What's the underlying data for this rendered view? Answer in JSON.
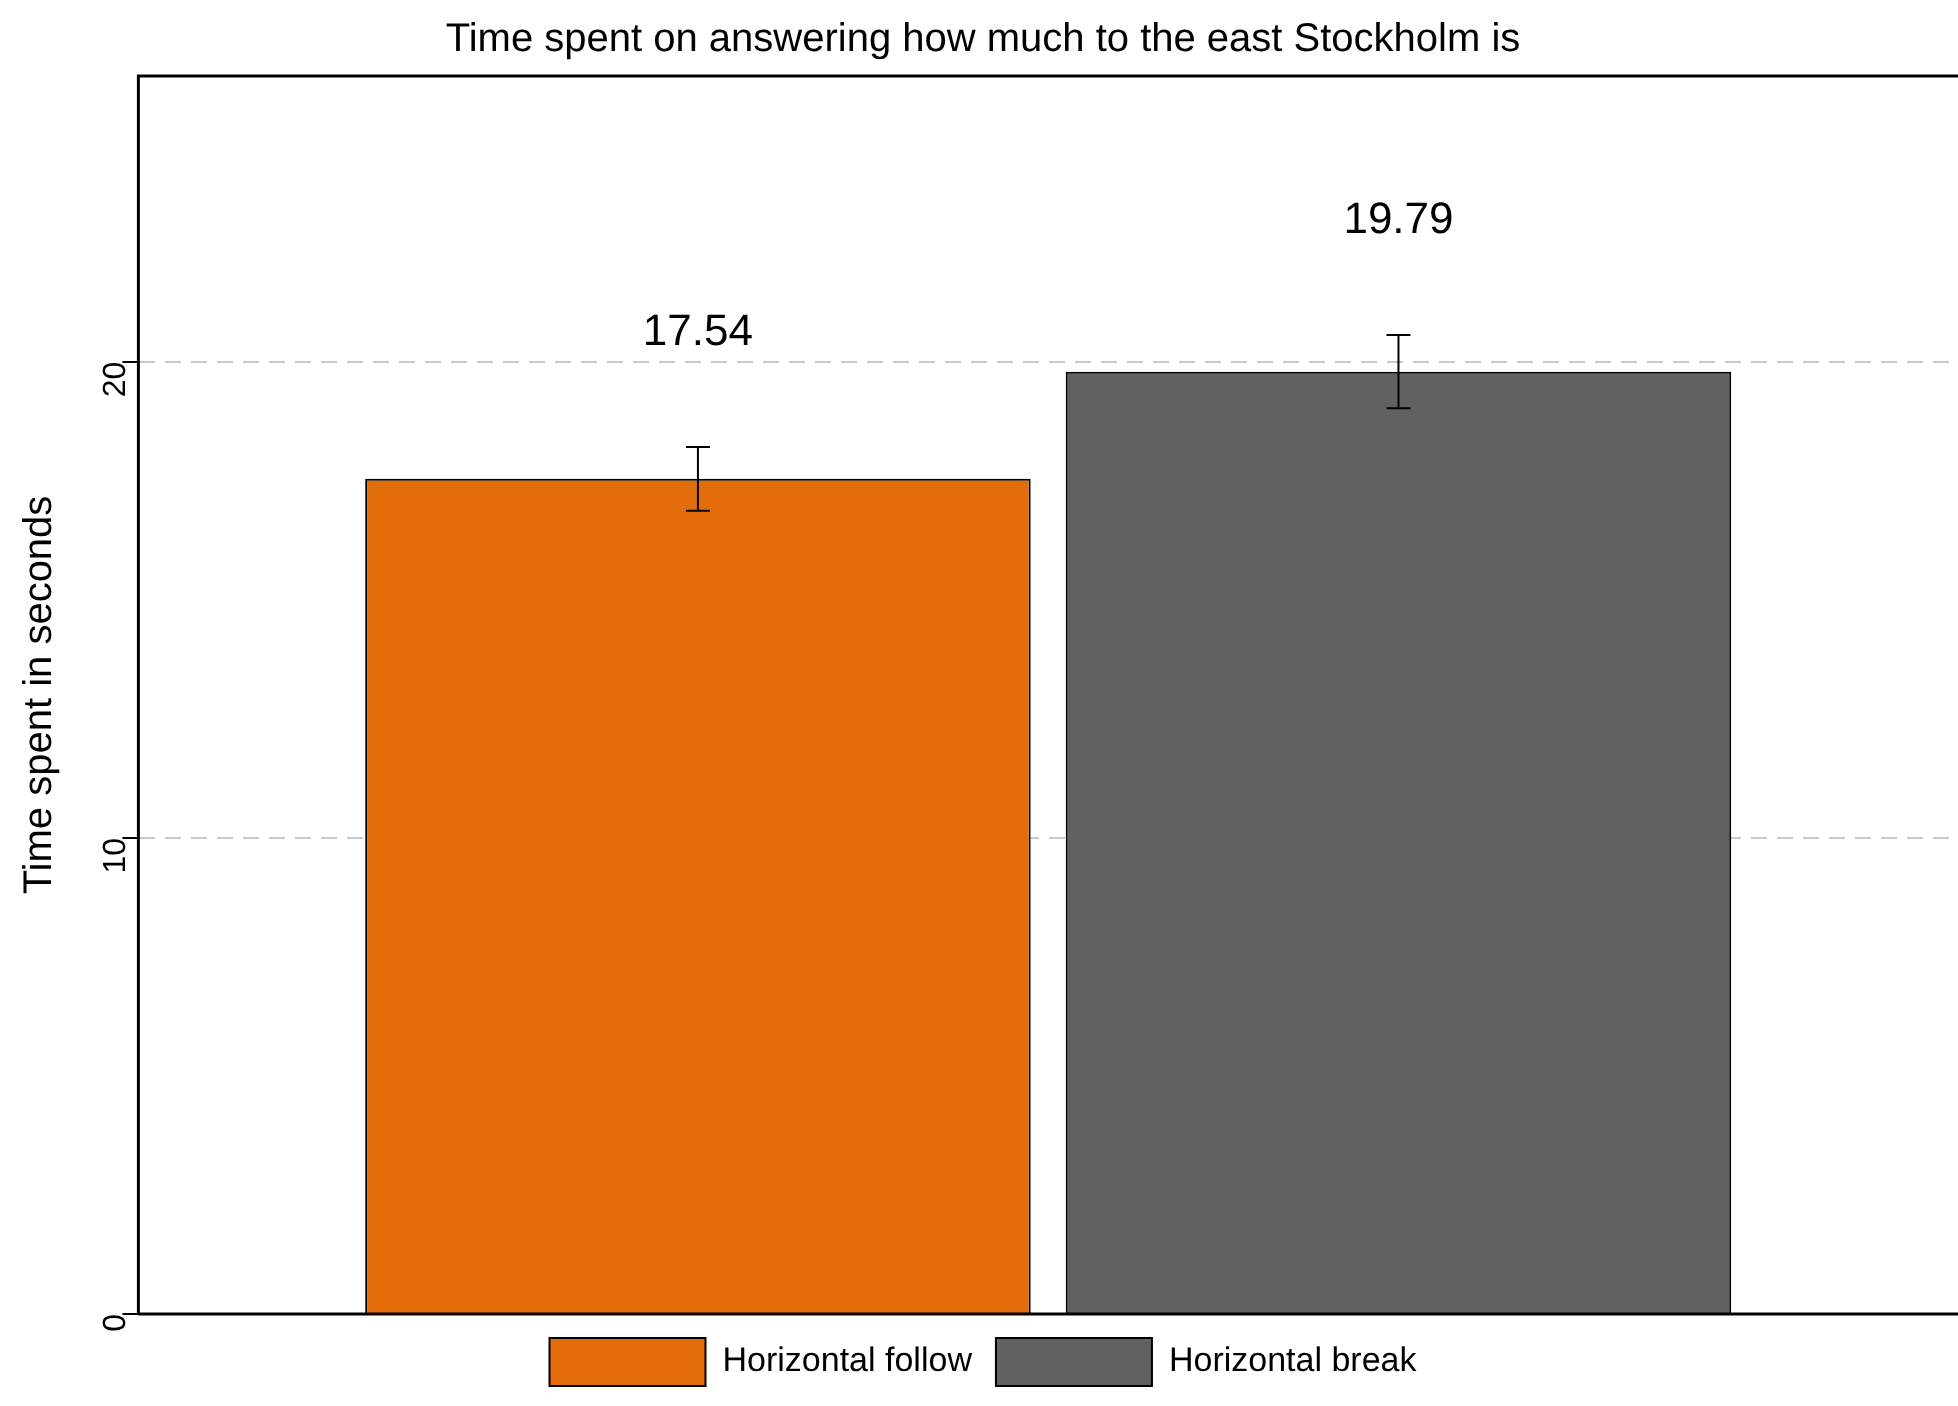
{
  "chart_data": {
    "type": "bar",
    "title": "Time spent on answering how much to the east Stockholm is",
    "ylabel": "Time spent in seconds",
    "categories": [
      null
    ],
    "series": [
      {
        "name": "Horizontal follow",
        "color": "#e36c0a",
        "values": [
          17.54
        ],
        "errors": [
          0.67
        ]
      },
      {
        "name": "Horizontal break",
        "color": "#616161",
        "values": [
          19.79
        ],
        "errors": [
          0.77
        ]
      }
    ],
    "ylim": [
      0,
      26
    ],
    "yticks": [
      0,
      10,
      20
    ],
    "grid": "y",
    "line_style": "dashed",
    "legend": "bottom",
    "data_labels": true
  }
}
